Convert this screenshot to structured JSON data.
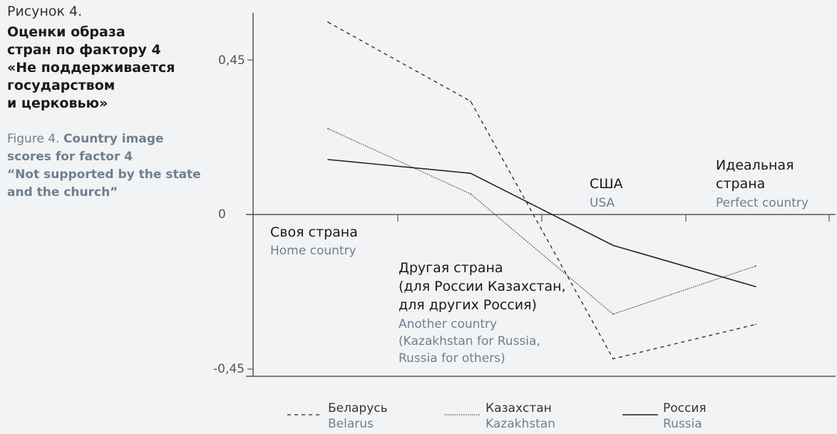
{
  "chart_data": {
    "type": "line",
    "figure_label_ru": "Рисунок 4.",
    "title": "Оценки образа\nстран по фактору 4\n«Не поддерживается\nгосударством\nи церковью»",
    "figure_label_en": "Figure 4. ",
    "subtitle": "Country image\nscores for factor 4\n“Not supported by the state\nand the church”",
    "categories": [
      {
        "ru": "Своя страна",
        "en": "Home country"
      },
      {
        "ru": "Другая страна\n(для России Казахстан,\nдля других Россия)",
        "en": "Another country\n(Kazakhstan for Russia,\nRussia for others)"
      },
      {
        "ru": "США",
        "en": "USA"
      },
      {
        "ru": "Идеальная\nстрана",
        "en": "Perfect country"
      }
    ],
    "y_ticks": [
      {
        "value": 0.45,
        "label": "0,45"
      },
      {
        "value": 0,
        "label": "0"
      },
      {
        "value": -0.45,
        "label": "-0,45"
      }
    ],
    "ylim": [
      -0.47,
      0.56
    ],
    "grid": false,
    "legend_position": "bottom",
    "series": [
      {
        "name": "Беларусь",
        "name_en": "Belarus",
        "style": "dashed",
        "values": [
          0.56,
          0.33,
          -0.42,
          -0.32
        ]
      },
      {
        "name": "Казахстан",
        "name_en": "Kazakhstan",
        "style": "dotted",
        "values": [
          0.25,
          0.06,
          -0.29,
          -0.15
        ]
      },
      {
        "name": "Россия",
        "name_en": "Russia",
        "style": "solid",
        "values": [
          0.16,
          0.12,
          -0.09,
          -0.21
        ]
      }
    ],
    "colors": {
      "line": "#222222",
      "axis": "#555555",
      "english_text": "#6f7f8f",
      "background": "#f2f3f5"
    }
  }
}
